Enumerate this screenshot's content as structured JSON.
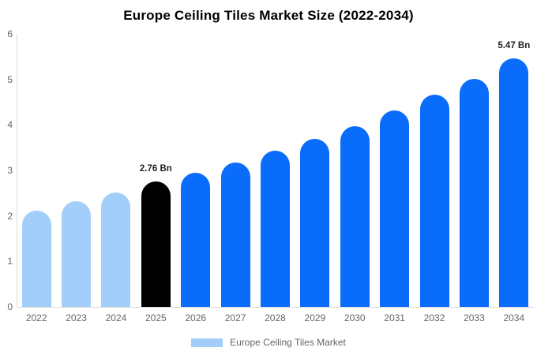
{
  "chart_data": {
    "type": "bar",
    "title": "Europe Ceiling Tiles Market Size (2022-2034)",
    "categories": [
      "2022",
      "2023",
      "2024",
      "2025",
      "2026",
      "2027",
      "2028",
      "2029",
      "2030",
      "2031",
      "2032",
      "2033",
      "2034"
    ],
    "values": [
      2.12,
      2.32,
      2.52,
      2.76,
      2.94,
      3.18,
      3.43,
      3.69,
      3.98,
      4.31,
      4.66,
      5.02,
      5.47
    ],
    "bar_colors": [
      "#a3cefa",
      "#a3cefa",
      "#a3cefa",
      "#000000",
      "#0a6cfa",
      "#0a6cfa",
      "#0a6cfa",
      "#0a6cfa",
      "#0a6cfa",
      "#0a6cfa",
      "#0a6cfa",
      "#0a6cfa",
      "#0a6cfa"
    ],
    "point_labels": [
      null,
      null,
      null,
      "2.76 Bn",
      null,
      null,
      null,
      null,
      null,
      null,
      null,
      null,
      "5.47 Bn"
    ],
    "xlabel": "",
    "ylabel": "",
    "ylim": [
      0,
      6
    ],
    "yticks": [
      "0",
      "1",
      "2",
      "3",
      "4",
      "5",
      "6"
    ],
    "grid": false,
    "legend_position": "bottom",
    "legend": {
      "label": "Europe Ceiling Tiles Market",
      "swatch_color": "#a3cefa"
    },
    "colors": {
      "historical_bar": "#a3cefa",
      "base_year_bar": "#000000",
      "forecast_bar": "#0a6cfa",
      "axis_line": "#dddddd",
      "tick_text": "#666666",
      "title_text": "#000000",
      "point_label_text": "#222222"
    }
  }
}
